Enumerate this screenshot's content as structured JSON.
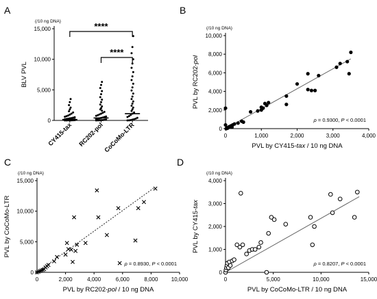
{
  "chart_data": [
    {
      "panel_label": "A",
      "type": "scatter",
      "title": "",
      "ylabel": "BLV PVL",
      "y_unit_note": "(/10 ng DNA)",
      "ylim": [
        0,
        15000
      ],
      "y_ticks": [
        0,
        5000,
        10000,
        15000
      ],
      "y_tick_labels": [
        "0",
        "5,000",
        "10,000",
        "15,000"
      ],
      "categories": [
        "CY415-tax",
        "RC202-pol",
        "CoCoMo-LTR"
      ],
      "comparisons": [
        {
          "from": "RC202-pol",
          "to": "CoCoMo-LTR",
          "label": "****"
        },
        {
          "from": "CY415-tax",
          "to": "CoCoMo-LTR",
          "label": "****"
        }
      ],
      "series": [
        {
          "category": "CY415-tax",
          "mean": 150,
          "values": [
            0,
            5,
            10,
            15,
            20,
            30,
            40,
            50,
            60,
            80,
            100,
            120,
            140,
            170,
            200,
            240,
            280,
            330,
            380,
            450,
            520,
            600,
            700,
            800,
            950,
            1100,
            1300,
            1500,
            1800,
            2100,
            2500,
            3000,
            3500
          ]
        },
        {
          "category": "RC202-pol",
          "mean": 400,
          "values": [
            0,
            10,
            20,
            40,
            60,
            100,
            140,
            200,
            260,
            330,
            400,
            480,
            560,
            650,
            750,
            860,
            980,
            1100,
            1250,
            1400,
            1600,
            1800,
            2000,
            2300,
            2600,
            3000,
            3400,
            3800,
            4300,
            4800,
            5300,
            5800,
            6300
          ]
        },
        {
          "category": "CoCoMo-LTR",
          "mean": 1100,
          "values": [
            0,
            20,
            60,
            120,
            200,
            300,
            420,
            560,
            720,
            900,
            1100,
            1300,
            1550,
            1800,
            2100,
            2400,
            2750,
            3100,
            3500,
            3900,
            4400,
            4900,
            5400,
            6000,
            6600,
            7200,
            7900,
            8600,
            9300,
            10000,
            11000,
            12000,
            13800
          ]
        }
      ]
    },
    {
      "panel_label": "B",
      "type": "scatter",
      "title": "",
      "xlabel": "PVL by CY415-tax / 10 ng DNA",
      "ylabel": "PVL by RC202-pol",
      "y_unit_note": "(/10 ng DNA)",
      "xlim": [
        0,
        4000
      ],
      "ylim": [
        0,
        10000
      ],
      "x_ticks": [
        0,
        1000,
        2000,
        3000,
        4000
      ],
      "x_tick_labels": [
        "0",
        "1,000",
        "2,000",
        "3,000",
        "4,000"
      ],
      "y_ticks": [
        0,
        2000,
        4000,
        6000,
        8000,
        10000
      ],
      "y_tick_labels": [
        "0",
        "2,000",
        "4,000",
        "6,000",
        "8,000",
        "10,000"
      ],
      "marker": "filled-circle",
      "stat": "ρ = 0.9300, P < 0.0001",
      "fit_line": {
        "x": [
          0,
          3500
        ],
        "y": [
          0,
          7500
        ]
      },
      "points": {
        "x": [
          0,
          0,
          20,
          40,
          60,
          100,
          150,
          180,
          200,
          250,
          350,
          450,
          500,
          700,
          900,
          1000,
          1000,
          1050,
          1100,
          1150,
          1200,
          1700,
          1700,
          2000,
          2300,
          2300,
          2400,
          2500,
          2600,
          3100,
          3200,
          3400,
          3450,
          3500
        ],
        "y": [
          2200,
          400,
          0,
          100,
          50,
          200,
          300,
          150,
          400,
          500,
          600,
          800,
          700,
          1800,
          1900,
          2000,
          2300,
          2200,
          2700,
          2500,
          2800,
          2600,
          3500,
          4800,
          4200,
          5900,
          4100,
          4100,
          5700,
          6600,
          7000,
          7200,
          5900,
          8200
        ]
      }
    },
    {
      "panel_label": "C",
      "type": "scatter",
      "title": "",
      "xlabel": "PVL by RC202-pol / 10 ng DNA",
      "ylabel": "PVL by CoCoMo-LTR",
      "y_unit_note": "(/10 ng DNA)",
      "xlim": [
        0,
        10000
      ],
      "ylim": [
        0,
        15000
      ],
      "x_ticks": [
        0,
        2000,
        4000,
        6000,
        8000,
        10000
      ],
      "x_tick_labels": [
        "0",
        "2,000",
        "4,000",
        "6,000",
        "8,000",
        "10,000"
      ],
      "y_ticks": [
        0,
        5000,
        10000,
        15000
      ],
      "y_tick_labels": [
        "0",
        "5,000",
        "10,000",
        "15,000"
      ],
      "marker": "x",
      "stat": "ρ = 0.8930, P < 0.0001",
      "fit_line": {
        "x": [
          0,
          8200
        ],
        "y": [
          0,
          13800
        ]
      },
      "points": {
        "x": [
          0,
          100,
          200,
          300,
          400,
          500,
          600,
          700,
          800,
          1200,
          1400,
          2000,
          2100,
          2200,
          2400,
          2500,
          2600,
          2700,
          2800,
          3400,
          4200,
          4300,
          4900,
          5700,
          5800,
          6900,
          7100,
          7500,
          8300
        ],
        "y": [
          0,
          100,
          200,
          300,
          400,
          500,
          800,
          1000,
          1200,
          1800,
          2500,
          2900,
          4800,
          3800,
          3700,
          1700,
          9000,
          3500,
          4500,
          4800,
          13400,
          9000,
          6100,
          10500,
          1500,
          5200,
          10500,
          11500,
          13700
        ]
      }
    },
    {
      "panel_label": "D",
      "type": "scatter",
      "title": "",
      "xlabel": "PVL by CoCoMo-LTR / 10 ng DNA",
      "ylabel": "PVL by CY415-tax",
      "y_unit_note": "(/10 ng DNA)",
      "xlim": [
        0,
        15000
      ],
      "ylim": [
        0,
        4000
      ],
      "x_ticks": [
        0,
        5000,
        10000,
        15000
      ],
      "x_tick_labels": [
        "0",
        "5,000",
        "10,000",
        "15,000"
      ],
      "y_ticks": [
        0,
        1000,
        2000,
        3000,
        4000
      ],
      "y_tick_labels": [
        "0",
        "1,000",
        "2,000",
        "3,000",
        "4,000"
      ],
      "marker": "open-circle",
      "stat": "ρ = 0.8207, P < 0.0001",
      "fit_line": {
        "x": [
          0,
          14000
        ],
        "y": [
          0,
          3300
        ]
      },
      "points": {
        "x": [
          0,
          50,
          100,
          150,
          200,
          300,
          400,
          500,
          700,
          900,
          1200,
          1500,
          1600,
          1800,
          2200,
          2500,
          2800,
          3100,
          3500,
          3700,
          4300,
          4500,
          4800,
          5100,
          6300,
          8900,
          9100,
          9300,
          11000,
          11200,
          12000,
          13500,
          13800
        ],
        "y": [
          0,
          100,
          200,
          300,
          400,
          200,
          450,
          300,
          500,
          550,
          1200,
          1100,
          3450,
          1200,
          800,
          950,
          1000,
          1000,
          1100,
          1300,
          0,
          1700,
          2400,
          2300,
          2100,
          2400,
          1200,
          2000,
          3400,
          2600,
          3200,
          2400,
          3500
        ]
      }
    }
  ]
}
